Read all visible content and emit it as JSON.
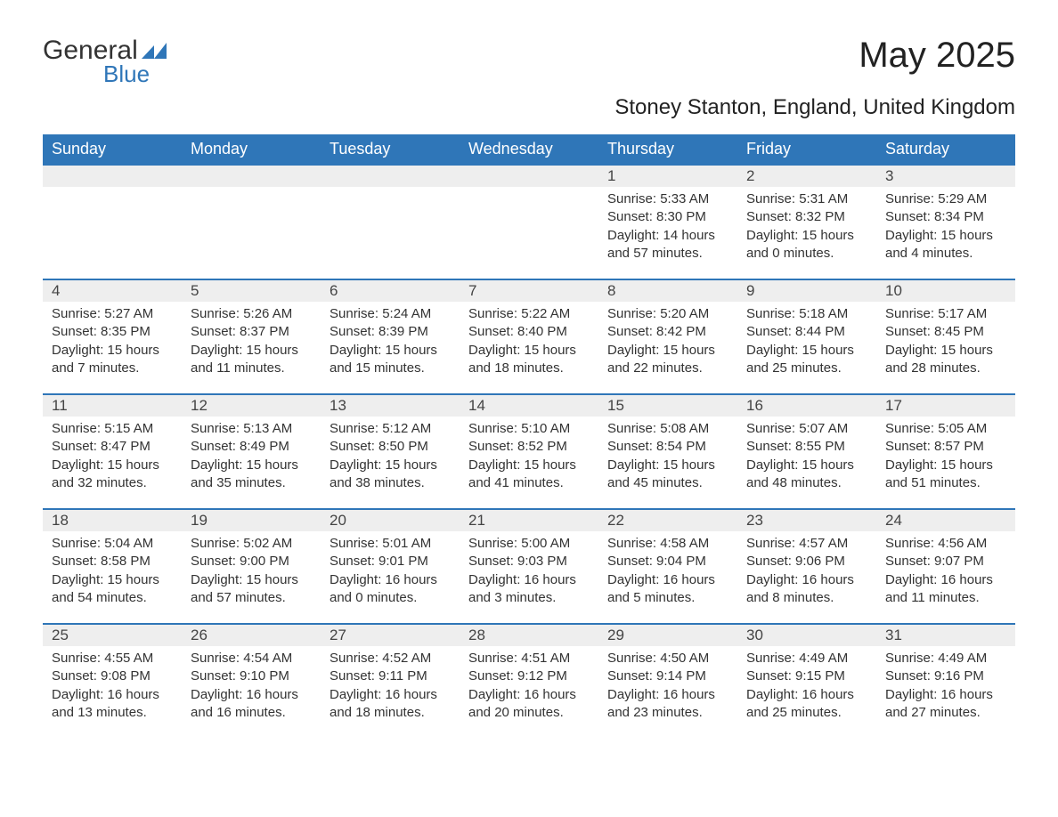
{
  "brand": {
    "part1": "General",
    "part2": "Blue",
    "shape_color": "#2f76b8"
  },
  "title": "May 2025",
  "location": "Stoney Stanton, England, United Kingdom",
  "colors": {
    "header_bg": "#2f76b8",
    "header_text": "#ffffff",
    "daynum_bg": "#eeeeee",
    "border_top": "#2f76b8",
    "body_text": "#333333"
  },
  "weekdays": [
    "Sunday",
    "Monday",
    "Tuesday",
    "Wednesday",
    "Thursday",
    "Friday",
    "Saturday"
  ],
  "weeks": [
    [
      null,
      null,
      null,
      null,
      {
        "n": "1",
        "sunrise": "5:33 AM",
        "sunset": "8:30 PM",
        "day_h": "14",
        "day_m": "57"
      },
      {
        "n": "2",
        "sunrise": "5:31 AM",
        "sunset": "8:32 PM",
        "day_h": "15",
        "day_m": "0"
      },
      {
        "n": "3",
        "sunrise": "5:29 AM",
        "sunset": "8:34 PM",
        "day_h": "15",
        "day_m": "4"
      }
    ],
    [
      {
        "n": "4",
        "sunrise": "5:27 AM",
        "sunset": "8:35 PM",
        "day_h": "15",
        "day_m": "7"
      },
      {
        "n": "5",
        "sunrise": "5:26 AM",
        "sunset": "8:37 PM",
        "day_h": "15",
        "day_m": "11"
      },
      {
        "n": "6",
        "sunrise": "5:24 AM",
        "sunset": "8:39 PM",
        "day_h": "15",
        "day_m": "15"
      },
      {
        "n": "7",
        "sunrise": "5:22 AM",
        "sunset": "8:40 PM",
        "day_h": "15",
        "day_m": "18"
      },
      {
        "n": "8",
        "sunrise": "5:20 AM",
        "sunset": "8:42 PM",
        "day_h": "15",
        "day_m": "22"
      },
      {
        "n": "9",
        "sunrise": "5:18 AM",
        "sunset": "8:44 PM",
        "day_h": "15",
        "day_m": "25"
      },
      {
        "n": "10",
        "sunrise": "5:17 AM",
        "sunset": "8:45 PM",
        "day_h": "15",
        "day_m": "28"
      }
    ],
    [
      {
        "n": "11",
        "sunrise": "5:15 AM",
        "sunset": "8:47 PM",
        "day_h": "15",
        "day_m": "32"
      },
      {
        "n": "12",
        "sunrise": "5:13 AM",
        "sunset": "8:49 PM",
        "day_h": "15",
        "day_m": "35"
      },
      {
        "n": "13",
        "sunrise": "5:12 AM",
        "sunset": "8:50 PM",
        "day_h": "15",
        "day_m": "38"
      },
      {
        "n": "14",
        "sunrise": "5:10 AM",
        "sunset": "8:52 PM",
        "day_h": "15",
        "day_m": "41"
      },
      {
        "n": "15",
        "sunrise": "5:08 AM",
        "sunset": "8:54 PM",
        "day_h": "15",
        "day_m": "45"
      },
      {
        "n": "16",
        "sunrise": "5:07 AM",
        "sunset": "8:55 PM",
        "day_h": "15",
        "day_m": "48"
      },
      {
        "n": "17",
        "sunrise": "5:05 AM",
        "sunset": "8:57 PM",
        "day_h": "15",
        "day_m": "51"
      }
    ],
    [
      {
        "n": "18",
        "sunrise": "5:04 AM",
        "sunset": "8:58 PM",
        "day_h": "15",
        "day_m": "54"
      },
      {
        "n": "19",
        "sunrise": "5:02 AM",
        "sunset": "9:00 PM",
        "day_h": "15",
        "day_m": "57"
      },
      {
        "n": "20",
        "sunrise": "5:01 AM",
        "sunset": "9:01 PM",
        "day_h": "16",
        "day_m": "0"
      },
      {
        "n": "21",
        "sunrise": "5:00 AM",
        "sunset": "9:03 PM",
        "day_h": "16",
        "day_m": "3"
      },
      {
        "n": "22",
        "sunrise": "4:58 AM",
        "sunset": "9:04 PM",
        "day_h": "16",
        "day_m": "5"
      },
      {
        "n": "23",
        "sunrise": "4:57 AM",
        "sunset": "9:06 PM",
        "day_h": "16",
        "day_m": "8"
      },
      {
        "n": "24",
        "sunrise": "4:56 AM",
        "sunset": "9:07 PM",
        "day_h": "16",
        "day_m": "11"
      }
    ],
    [
      {
        "n": "25",
        "sunrise": "4:55 AM",
        "sunset": "9:08 PM",
        "day_h": "16",
        "day_m": "13"
      },
      {
        "n": "26",
        "sunrise": "4:54 AM",
        "sunset": "9:10 PM",
        "day_h": "16",
        "day_m": "16"
      },
      {
        "n": "27",
        "sunrise": "4:52 AM",
        "sunset": "9:11 PM",
        "day_h": "16",
        "day_m": "18"
      },
      {
        "n": "28",
        "sunrise": "4:51 AM",
        "sunset": "9:12 PM",
        "day_h": "16",
        "day_m": "20"
      },
      {
        "n": "29",
        "sunrise": "4:50 AM",
        "sunset": "9:14 PM",
        "day_h": "16",
        "day_m": "23"
      },
      {
        "n": "30",
        "sunrise": "4:49 AM",
        "sunset": "9:15 PM",
        "day_h": "16",
        "day_m": "25"
      },
      {
        "n": "31",
        "sunrise": "4:49 AM",
        "sunset": "9:16 PM",
        "day_h": "16",
        "day_m": "27"
      }
    ]
  ],
  "labels": {
    "sunrise": "Sunrise:",
    "sunset": "Sunset:",
    "daylight": "Daylight:",
    "hours": "hours",
    "and": "and",
    "minutes": "minutes."
  }
}
